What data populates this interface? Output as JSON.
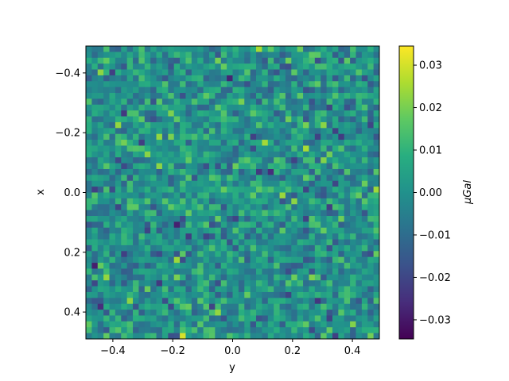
{
  "chart_data": {
    "type": "heatmap",
    "title": "",
    "xlabel": "y",
    "ylabel": "x",
    "colorbar_label": "μGal",
    "x_range": [
      -0.49,
      0.49
    ],
    "y_range": [
      -0.49,
      0.49
    ],
    "y_axis_inverted": true,
    "grid": false,
    "colormap": "viridis",
    "vmin": -0.0345,
    "vmax": 0.0345,
    "grid_cells": [
      50,
      50
    ],
    "noise_std": 0.0085,
    "x_ticks": [
      -0.4,
      -0.2,
      0.0,
      0.2,
      0.4
    ],
    "x_tick_labels": [
      "−0.4",
      "−0.2",
      "0.0",
      "0.2",
      "0.4"
    ],
    "y_ticks": [
      -0.4,
      -0.2,
      0.0,
      0.2,
      0.4
    ],
    "y_tick_labels": [
      "−0.4",
      "−0.2",
      "0.0",
      "0.2",
      "0.4"
    ],
    "colorbar_ticks": [
      0.03,
      0.02,
      0.01,
      0.0,
      -0.01,
      -0.02,
      -0.03
    ],
    "colorbar_tick_labels": [
      "0.03",
      "0.02",
      "0.01",
      "0.00",
      "−0.01",
      "−0.02",
      "−0.03"
    ]
  }
}
